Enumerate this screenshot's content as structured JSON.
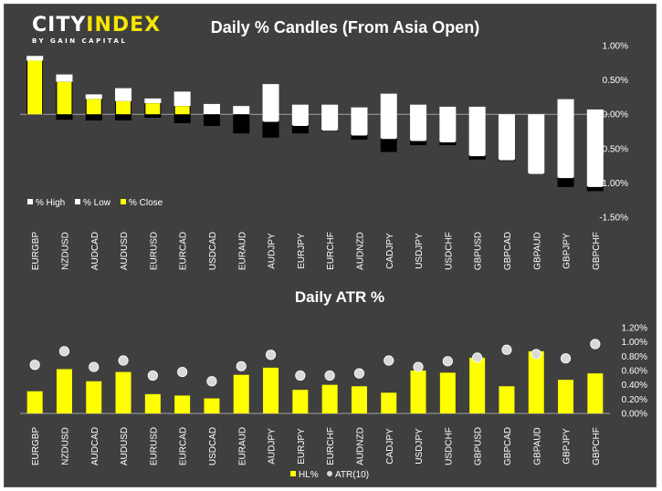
{
  "brand": {
    "logo_text": "CITYINDEX",
    "logo_tagline": "BY GAIN CAPITAL",
    "logo_accent": "#f5e600"
  },
  "colors": {
    "background": "#3f3f3f",
    "high_box": "#ffffff",
    "low_box": "#000000",
    "close_bar": "#ffff00",
    "hl_bar": "#ffff00",
    "atr_marker": "#d9d9d9",
    "text": "#ffffff"
  },
  "chart_data": [
    {
      "type": "bar",
      "title": "Daily % Candles (From Asia Open)",
      "categories": [
        "EURGBP",
        "NZDUSD",
        "AUDCAD",
        "AUDUSD",
        "EURUSD",
        "EURCAD",
        "USDCAD",
        "EURAUD",
        "AUDJPY",
        "EURJPY",
        "EURCHF",
        "AUDNZD",
        "CADJPY",
        "USDJPY",
        "USDCHF",
        "GBPUSD",
        "GBPCAD",
        "GBPAUD",
        "GBPJPY",
        "GBPCHF"
      ],
      "series": [
        {
          "name": "% High",
          "values": [
            0.85,
            0.58,
            0.29,
            0.38,
            0.23,
            0.33,
            0.15,
            0.12,
            0.44,
            0.14,
            0.14,
            0.1,
            0.3,
            0.14,
            0.11,
            0.11,
            0.0,
            0.0,
            0.22,
            0.07
          ]
        },
        {
          "name": "% Low",
          "values": [
            0.0,
            -0.08,
            -0.09,
            -0.09,
            -0.05,
            -0.13,
            -0.17,
            -0.28,
            -0.34,
            -0.28,
            -0.25,
            -0.37,
            -0.55,
            -0.45,
            -0.45,
            -0.66,
            -0.68,
            -0.87,
            -1.06,
            -1.12
          ]
        },
        {
          "name": "% Close",
          "values": [
            0.78,
            0.47,
            0.22,
            0.19,
            0.16,
            0.12,
            0.0,
            0.0,
            -0.1,
            -0.16,
            -0.23,
            -0.3,
            -0.35,
            -0.38,
            -0.4,
            -0.6,
            -0.66,
            -0.86,
            -0.92,
            -1.05
          ]
        }
      ],
      "ylim": [
        -1.5,
        1.0
      ],
      "yticks": [
        "1.00%",
        "0.50%",
        "0.00%",
        "-0.50%",
        "-1.00%",
        "-1.50%"
      ],
      "legend_position": "bottom-left",
      "grid": false
    },
    {
      "type": "bar",
      "title": "Daily ATR %",
      "categories": [
        "EURGBP",
        "NZDUSD",
        "AUDCAD",
        "AUDUSD",
        "EURUSD",
        "EURCAD",
        "USDCAD",
        "EURAUD",
        "AUDJPY",
        "EURJPY",
        "EURCHF",
        "AUDNZD",
        "CADJPY",
        "USDJPY",
        "USDCHF",
        "GBPUSD",
        "GBPCAD",
        "GBPAUD",
        "GBPJPY",
        "GBPCHF"
      ],
      "series": [
        {
          "name": "HL%",
          "values": [
            0.31,
            0.62,
            0.45,
            0.58,
            0.27,
            0.25,
            0.21,
            0.54,
            0.64,
            0.33,
            0.4,
            0.38,
            0.29,
            0.6,
            0.57,
            0.78,
            0.38,
            0.87,
            0.47,
            0.56
          ]
        },
        {
          "name": "ATR(10)",
          "values": [
            0.68,
            0.87,
            0.65,
            0.74,
            0.53,
            0.58,
            0.45,
            0.66,
            0.82,
            0.53,
            0.53,
            0.56,
            0.74,
            0.65,
            0.73,
            0.78,
            0.89,
            0.83,
            0.77,
            0.97
          ]
        }
      ],
      "ylim": [
        0,
        1.2
      ],
      "yticks": [
        "1.20%",
        "1.00%",
        "0.80%",
        "0.60%",
        "0.40%",
        "0.20%",
        "0.00%"
      ],
      "legend_position": "bottom-center",
      "grid": false
    }
  ]
}
